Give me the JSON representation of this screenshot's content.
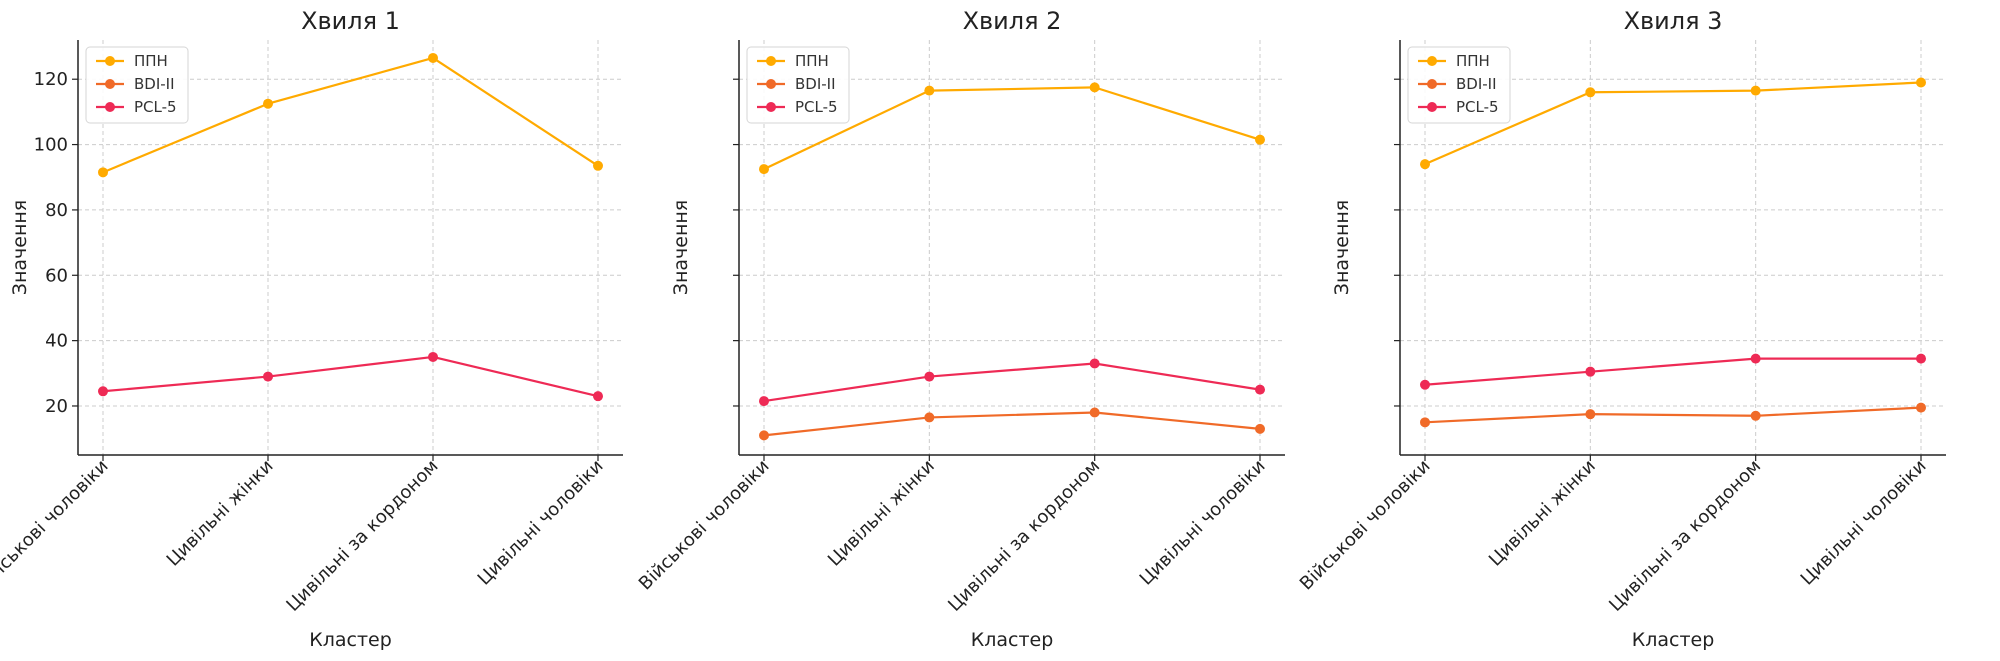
{
  "chart_data": [
    {
      "type": "line",
      "title": "Хвиля 1",
      "xlabel": "Кластер",
      "ylabel": "Значення",
      "categories": [
        "Військові чоловіки",
        "Цивільні жінки",
        "Цивільні за кордоном",
        "Цивільні чоловіки"
      ],
      "ylim": [
        5,
        132
      ],
      "yticks": [
        20,
        40,
        60,
        80,
        100,
        120
      ],
      "show_ytick_labels": true,
      "grid": true,
      "legend_position": "top-left",
      "series": [
        {
          "name": "ППН",
          "color": "#FFAA00",
          "values": [
            91.5,
            112.5,
            126.5,
            93.5
          ]
        },
        {
          "name": "BDI-II",
          "color": "#F06A28",
          "values": [
            null,
            null,
            null,
            null
          ]
        },
        {
          "name": "PCL-5",
          "color": "#EE2A55",
          "values": [
            24.5,
            29.0,
            35.0,
            23.0
          ]
        }
      ]
    },
    {
      "type": "line",
      "title": "Хвиля 2",
      "xlabel": "Кластер",
      "ylabel": "Значення",
      "categories": [
        "Військові чоловіки",
        "Цивільні жінки",
        "Цивільні за кордоном",
        "Цивільні чоловіки"
      ],
      "ylim": [
        5,
        132
      ],
      "yticks": [
        20,
        40,
        60,
        80,
        100,
        120
      ],
      "show_ytick_labels": false,
      "grid": true,
      "legend_position": "top-left",
      "series": [
        {
          "name": "ППН",
          "color": "#FFAA00",
          "values": [
            92.5,
            116.5,
            117.5,
            101.5
          ]
        },
        {
          "name": "BDI-II",
          "color": "#F06A28",
          "values": [
            11.0,
            16.5,
            18.0,
            13.0
          ]
        },
        {
          "name": "PCL-5",
          "color": "#EE2A55",
          "values": [
            21.5,
            29.0,
            33.0,
            25.0
          ]
        }
      ]
    },
    {
      "type": "line",
      "title": "Хвиля 3",
      "xlabel": "Кластер",
      "ylabel": "Значення",
      "categories": [
        "Військові чоловіки",
        "Цивільні жінки",
        "Цивільні за кордоном",
        "Цивільні чоловіки"
      ],
      "ylim": [
        5,
        132
      ],
      "yticks": [
        20,
        40,
        60,
        80,
        100,
        120
      ],
      "show_ytick_labels": false,
      "grid": true,
      "legend_position": "top-left",
      "series": [
        {
          "name": "ППН",
          "color": "#FFAA00",
          "values": [
            94.0,
            116.0,
            116.5,
            119.0
          ]
        },
        {
          "name": "BDI-II",
          "color": "#F06A28",
          "values": [
            15.0,
            17.5,
            17.0,
            19.5
          ]
        },
        {
          "name": "PCL-5",
          "color": "#EE2A55",
          "values": [
            26.5,
            30.5,
            34.5,
            34.5
          ]
        }
      ]
    }
  ]
}
